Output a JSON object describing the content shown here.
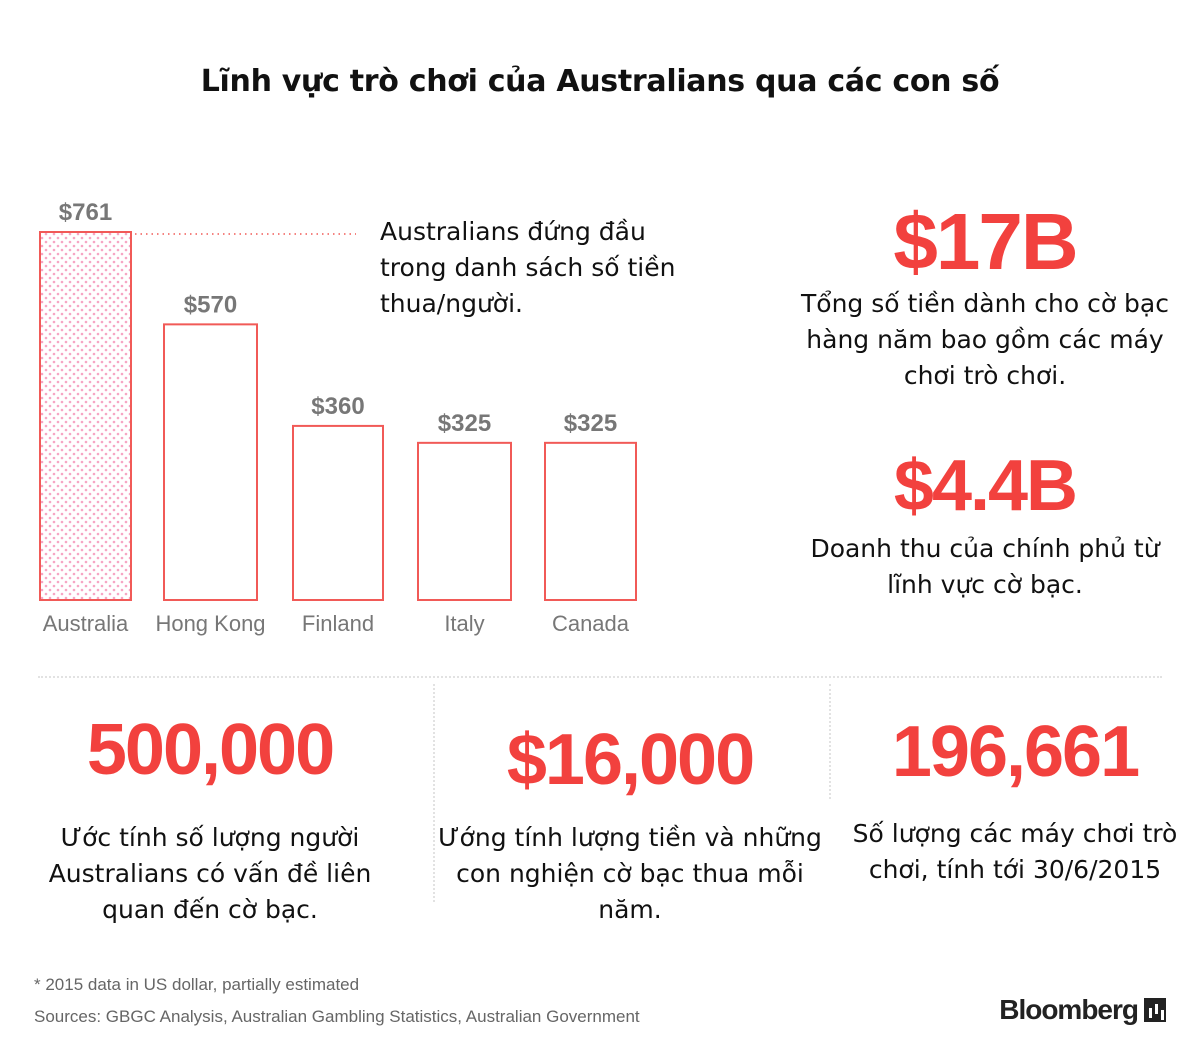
{
  "title": "Lĩnh vực trò chơi của Australians qua các con số",
  "colors": {
    "accent": "#f2413e",
    "bar_stroke": "#f15a57",
    "highlight_dots": "#f6a6c4",
    "label_gray": "#777777"
  },
  "chart_data": {
    "type": "bar",
    "categories": [
      "Australia",
      "Hong Kong",
      "Finland",
      "Italy",
      "Canada"
    ],
    "values": [
      761,
      570,
      360,
      325,
      325
    ],
    "value_labels": [
      "$761",
      "$570",
      "$360",
      "$325",
      "$325"
    ],
    "highlight_index": 0,
    "title": "",
    "xlabel": "",
    "ylabel": "",
    "ylim": [
      0,
      761
    ],
    "grid": false,
    "annotation": "Australians đứng đầu trong danh sách số tiền thua/người."
  },
  "stats": {
    "gambling_total": {
      "value": "$17B",
      "label": "Tổng số tiền dành cho cờ bạc hàng năm bao gồm các máy chơi trò chơi."
    },
    "gov_revenue": {
      "value": "$4.4B",
      "label": "Doanh thu của chính phủ từ lĩnh vực cờ bạc."
    },
    "problem_gamblers": {
      "value": "500,000",
      "label": "Ước tính số lượng người Australians  có vấn đề liên quan đến cờ bạc."
    },
    "loss_per_addict": {
      "value": "$16,000",
      "label": "Ướng tính lượng tiền và những con nghiện cờ bạc thua mỗi năm."
    },
    "machines": {
      "value": "196,661",
      "label": "Số lượng các máy chơi trò chơi, tính tới 30/6/2015"
    }
  },
  "footnote": "* 2015 data in US dollar, partially estimated",
  "sources": "Sources: GBGC Analysis, Australian Gambling Statistics, Australian Government",
  "brand": "Bloomberg",
  "brand_icon": "bloomberg-bars-icon"
}
